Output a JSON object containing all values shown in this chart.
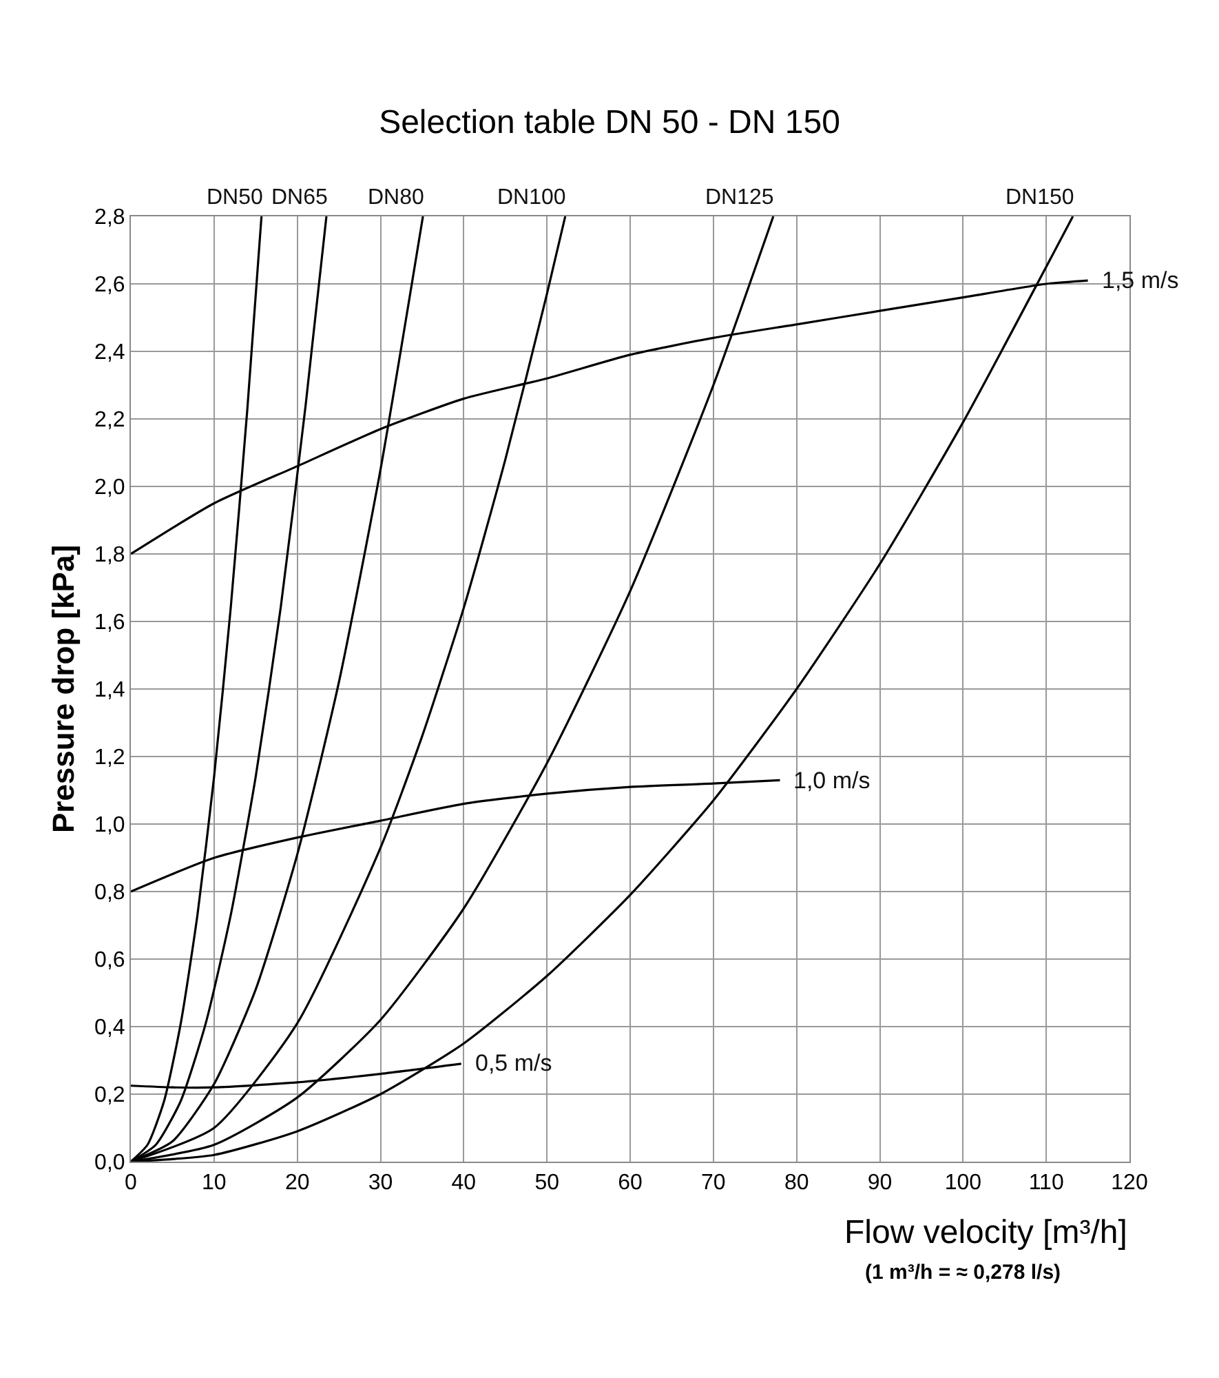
{
  "chart_data": {
    "type": "line",
    "title": "Selection table DN 50 - DN 150",
    "xlabel": "Flow velocity [m³/h]",
    "ylabel": "Pressure drop [kPa]",
    "annotations": [
      "(1 m³/h = ≈ 0,278 l/s)"
    ],
    "xlim": [
      0,
      120
    ],
    "xticks": [
      0,
      10,
      20,
      30,
      40,
      50,
      60,
      70,
      80,
      90,
      100,
      110,
      120
    ],
    "ylim": [
      0,
      2.8
    ],
    "yticks": [
      {
        "value": 0,
        "label": "0,0"
      },
      {
        "value": 0.2,
        "label": "0,2"
      },
      {
        "value": 0.4,
        "label": "0,4"
      },
      {
        "value": 0.6,
        "label": "0,6"
      },
      {
        "value": 0.8,
        "label": "0,8"
      },
      {
        "value": 1.0,
        "label": "1,0"
      },
      {
        "value": 1.2,
        "label": "1,2"
      },
      {
        "value": 1.4,
        "label": "1,4"
      },
      {
        "value": 1.6,
        "label": "1,6"
      },
      {
        "value": 1.8,
        "label": "1,8"
      },
      {
        "value": 2.0,
        "label": "2,0"
      },
      {
        "value": 2.2,
        "label": "2,2"
      },
      {
        "value": 2.4,
        "label": "2,4"
      },
      {
        "value": 2.6,
        "label": "2,6"
      },
      {
        "value": 2.8,
        "label": "2,8"
      }
    ],
    "grid": true,
    "legend": false,
    "marker": "none",
    "line_style": "solid",
    "series": [
      {
        "name": "DN50",
        "color": "#000000",
        "x": [
          0,
          2,
          4,
          6,
          8,
          10,
          12,
          14,
          15.7
        ],
        "values": [
          0,
          0.05,
          0.18,
          0.41,
          0.73,
          1.14,
          1.64,
          2.23,
          2.8
        ]
      },
      {
        "name": "DN65",
        "color": "#000000",
        "x": [
          0,
          3,
          6,
          9,
          12,
          15,
          18,
          21,
          23.5
        ],
        "values": [
          0,
          0.05,
          0.18,
          0.41,
          0.73,
          1.14,
          1.64,
          2.24,
          2.8
        ]
      },
      {
        "name": "DN80",
        "color": "#000000",
        "x": [
          0,
          5,
          10,
          15,
          20,
          25,
          30,
          35.1
        ],
        "values": [
          0,
          0.06,
          0.23,
          0.51,
          0.91,
          1.42,
          2.05,
          2.8
        ]
      },
      {
        "name": "DN100",
        "color": "#000000",
        "x": [
          0,
          10,
          20,
          30,
          35,
          40,
          45,
          50,
          52.2
        ],
        "values": [
          0,
          0.1,
          0.41,
          0.93,
          1.26,
          1.64,
          2.08,
          2.57,
          2.8
        ]
      },
      {
        "name": "DN125",
        "color": "#000000",
        "x": [
          0,
          10,
          20,
          30,
          40,
          50,
          60,
          70,
          77.2
        ],
        "values": [
          0,
          0.05,
          0.19,
          0.42,
          0.75,
          1.18,
          1.69,
          2.3,
          2.8
        ]
      },
      {
        "name": "DN150",
        "color": "#000000",
        "x": [
          0,
          10,
          20,
          30,
          40,
          50,
          60,
          70,
          80,
          90,
          100,
          113.2
        ],
        "values": [
          0,
          0.02,
          0.09,
          0.2,
          0.35,
          0.55,
          0.79,
          1.07,
          1.4,
          1.77,
          2.19,
          2.8
        ]
      },
      {
        "name": "1,5 m/s",
        "color": "#000000",
        "x": [
          0,
          10,
          20,
          30,
          40,
          50,
          60,
          70,
          80,
          90,
          100,
          110,
          115
        ],
        "values": [
          1.8,
          1.95,
          2.06,
          2.17,
          2.26,
          2.32,
          2.39,
          2.44,
          2.48,
          2.52,
          2.56,
          2.6,
          2.61
        ]
      },
      {
        "name": "1,0 m/s",
        "color": "#000000",
        "x": [
          0,
          10,
          20,
          30,
          40,
          50,
          60,
          70,
          78
        ],
        "values": [
          0.8,
          0.9,
          0.96,
          1.01,
          1.06,
          1.09,
          1.11,
          1.12,
          1.13
        ]
      },
      {
        "name": "0,5 m/s",
        "color": "#000000",
        "x": [
          0,
          5,
          10,
          20,
          30,
          39.7
        ],
        "values": [
          0.225,
          0.22,
          0.22,
          0.235,
          0.26,
          0.29
        ]
      }
    ]
  }
}
